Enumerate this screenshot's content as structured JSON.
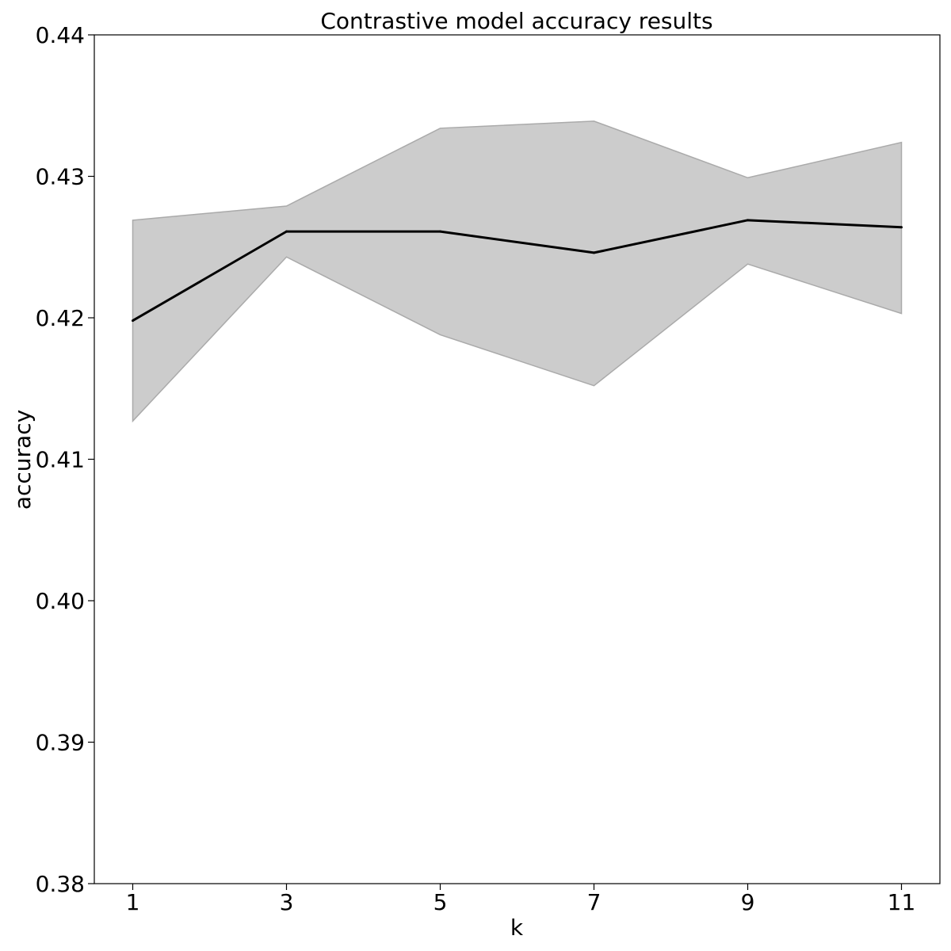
{
  "chart_data": {
    "type": "line",
    "title": "Contrastive model accuracy results",
    "xlabel": "k",
    "ylabel": "accuracy",
    "x": [
      1,
      3,
      5,
      7,
      9,
      11
    ],
    "x_ticks": [
      "1",
      "3",
      "5",
      "7",
      "9",
      "11"
    ],
    "xlim": [
      0.5,
      11.5
    ],
    "ylim": [
      0.38,
      0.44
    ],
    "y_ticks": [
      "0.38",
      "0.39",
      "0.40",
      "0.41",
      "0.42",
      "0.43",
      "0.44"
    ],
    "series": [
      {
        "values": [
          0.4198,
          0.4261,
          0.4261,
          0.4246,
          0.4269,
          0.4264
        ],
        "color": "#000000"
      }
    ],
    "band": {
      "upper": [
        0.4269,
        0.4279,
        0.4334,
        0.4339,
        0.4299,
        0.4324
      ],
      "lower": [
        0.4127,
        0.4243,
        0.4188,
        0.4152,
        0.4238,
        0.4203
      ],
      "fill": "#cccccc",
      "edge": "#aaaaaa"
    },
    "grid": false,
    "legend": "none"
  }
}
